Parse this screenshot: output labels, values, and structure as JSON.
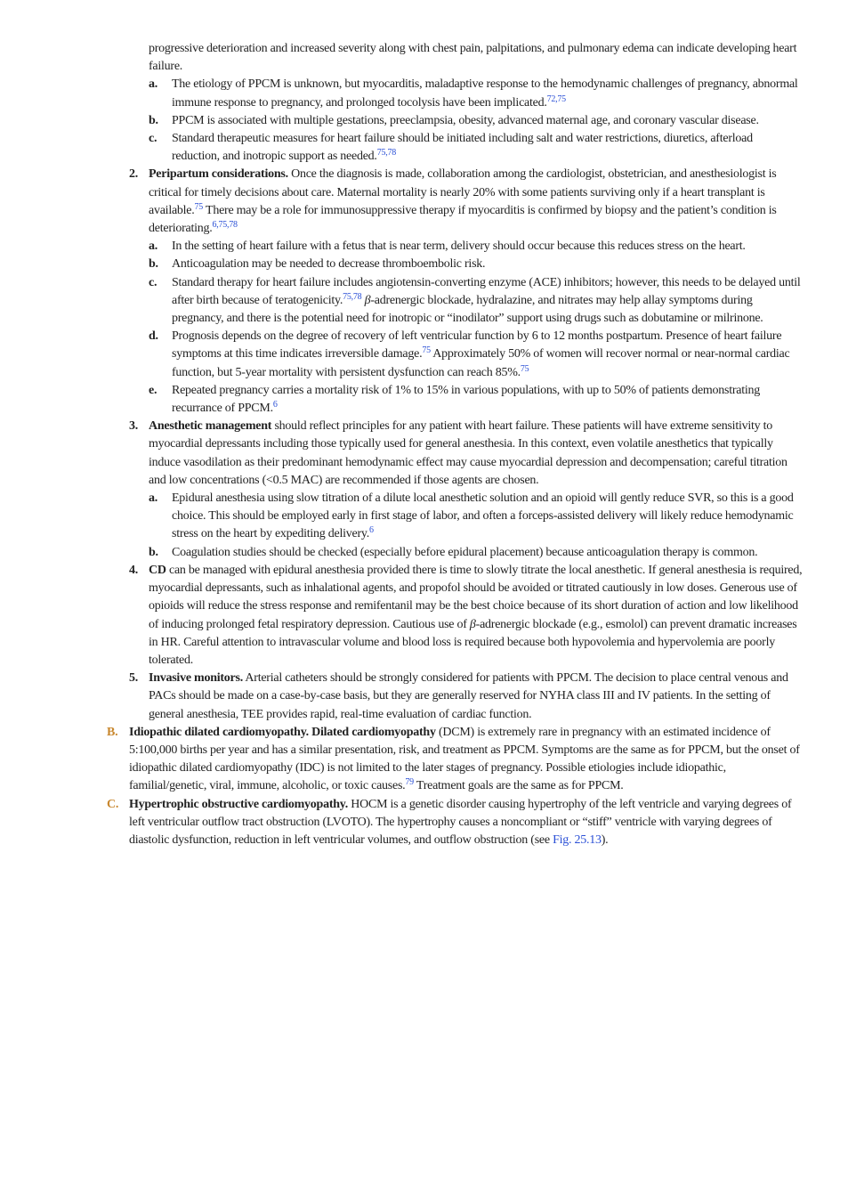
{
  "items": [
    {
      "level": 1,
      "runs": [
        {
          "t": "progressive deterioration and increased severity along with chest pain, palpitations, and pulmonary edema can indicate developing heart failure."
        }
      ]
    },
    {
      "level": 2,
      "marker": "a.",
      "runs": [
        {
          "t": "The etiology of PPCM is unknown, but myocarditis, maladaptive response to the hemodynamic challenges of pregnancy, abnormal immune response to pregnancy, and prolonged tocolysis have been implicated."
        },
        {
          "sup": "72,75"
        }
      ]
    },
    {
      "level": 2,
      "marker": "b.",
      "runs": [
        {
          "t": "PPCM is associated with multiple gestations, preeclampsia, obesity, advanced maternal age, and coronary vascular disease."
        }
      ]
    },
    {
      "level": 2,
      "marker": "c.",
      "runs": [
        {
          "t": "Standard therapeutic measures for heart failure should be initiated including salt and water restrictions, diuretics, afterload reduction, and inotropic support as needed."
        },
        {
          "sup": "75,78"
        }
      ]
    },
    {
      "level": 1,
      "marker": "2.",
      "runs": [
        {
          "b": "Peripartum considerations."
        },
        {
          "t": " Once the diagnosis is made, collaboration among the cardiologist, obstetrician, and anesthesiologist is critical for timely decisions about care. Maternal mortality is nearly 20% with some patients surviving only if a heart transplant is available."
        },
        {
          "sup": "75"
        },
        {
          "t": " There may be a role for immunosuppressive therapy if myocarditis is confirmed by biopsy and the patient’s condition is deteriorating."
        },
        {
          "sup": "6,75,78"
        }
      ]
    },
    {
      "level": 2,
      "marker": "a.",
      "runs": [
        {
          "t": "In the setting of heart failure with a fetus that is near term, delivery should occur because this reduces stress on the heart."
        }
      ]
    },
    {
      "level": 2,
      "marker": "b.",
      "runs": [
        {
          "t": "Anticoagulation may be needed to decrease thromboembolic risk."
        }
      ]
    },
    {
      "level": 2,
      "marker": "c.",
      "runs": [
        {
          "t": "Standard therapy for heart failure includes angiotensin-converting enzyme (ACE) inhibitors; however, this needs to be delayed until after birth because of teratogenicity."
        },
        {
          "sup": "75,78"
        },
        {
          "i": " β"
        },
        {
          "t": "-adrenergic blockade, hydralazine, and nitrates may help allay symptoms during pregnancy, and there is the potential need for inotropic or “inodilator” support using drugs such as dobutamine or milrinone."
        }
      ]
    },
    {
      "level": 2,
      "marker": "d.",
      "runs": [
        {
          "t": "Prognosis depends on the degree of recovery of left ventricular function by 6 to 12 months postpartum. Presence of heart failure symptoms at this time indicates irreversible damage."
        },
        {
          "sup": "75"
        },
        {
          "t": " Approximately 50% of women will recover normal or near-normal cardiac function, but 5-year mortality with persistent dysfunction can reach 85%."
        },
        {
          "sup": "75"
        }
      ]
    },
    {
      "level": 2,
      "marker": "e.",
      "runs": [
        {
          "t": "Repeated pregnancy carries a mortality risk of 1% to 15% in various populations, with up to 50% of patients demonstrating recurrance of PPCM."
        },
        {
          "sup": "6"
        }
      ]
    },
    {
      "level": 1,
      "marker": "3.",
      "runs": [
        {
          "b": "Anesthetic management"
        },
        {
          "t": " should reflect principles for any patient with heart failure. These patients will have extreme sensitivity to myocardial depressants including those typically used for general anesthesia. In this context, even volatile anesthetics that typically induce vasodilation as their predominant hemodynamic effect may cause myocardial depression and decompensation; careful titration and low concentrations (<0.5 MAC) are recommended if those agents are chosen."
        }
      ]
    },
    {
      "level": 2,
      "marker": "a.",
      "runs": [
        {
          "t": "Epidural anesthesia using slow titration of a dilute local anesthetic solution and an opioid will gently reduce SVR, so this is a good choice. This should be employed early in first stage of labor, and often a forceps-assisted delivery will likely reduce hemodynamic stress on the heart by expediting delivery."
        },
        {
          "sup": "6"
        }
      ]
    },
    {
      "level": 2,
      "marker": "b.",
      "runs": [
        {
          "t": "Coagulation studies should be checked (especially before epidural placement) because anticoagulation therapy is common."
        }
      ]
    },
    {
      "level": 1,
      "marker": "4.",
      "runs": [
        {
          "b": "CD"
        },
        {
          "t": " can be managed with epidural anesthesia provided there is time to slowly titrate the local anesthetic. If general anesthesia is required, myocardial depressants, such as inhalational agents, and propofol should be avoided or titrated cautiously in low doses. Generous use of opioids will reduce the stress response and remifentanil may be the best choice because of its short duration of action and low likelihood of inducing prolonged fetal respiratory depression. Cautious use of "
        },
        {
          "i": "β"
        },
        {
          "t": "-adrenergic blockade (e.g., esmolol) can prevent dramatic increases in HR. Careful attention to intravascular volume and blood loss is required because both hypovolemia and hypervolemia are poorly tolerated."
        }
      ]
    },
    {
      "level": 1,
      "marker": "5.",
      "runs": [
        {
          "b": "Invasive monitors."
        },
        {
          "t": " Arterial catheters should be strongly considered for patients with PPCM. The decision to place central venous and PACs should be made on a case-by-case basis, but they are generally reserved for NYHA class III and IV patients. In the setting of general anesthesia, TEE provides rapid, real-time evaluation of cardiac function."
        }
      ]
    },
    {
      "level": 0,
      "marker": "B.",
      "runs": [
        {
          "b": "Idiopathic dilated cardiomyopathy. Dilated cardiomyopathy"
        },
        {
          "t": " (DCM) is extremely rare in pregnancy with an estimated incidence of 5:100,000 births per year and has a similar presentation, risk, and treatment as PPCM. Symptoms are the same as for PPCM, but the onset of idiopathic dilated cardiomyopathy (IDC) is not limited to the later stages of pregnancy. Possible etiologies include idiopathic, familial/genetic, viral, immune, alcoholic, or toxic causes."
        },
        {
          "sup": "79"
        },
        {
          "t": " Treatment goals are the same as for PPCM."
        }
      ]
    },
    {
      "level": 0,
      "marker": "C.",
      "runs": [
        {
          "b": "Hypertrophic obstructive cardiomyopathy."
        },
        {
          "t": " HOCM is a genetic disorder causing hypertrophy of the left ventricle and varying degrees of left ventricular outflow tract obstruction (LVOTO). The hypertrophy causes a noncompliant or “stiff” ventricle with varying degrees of diastolic dysfunction, reduction in left ventricular volumes, and outflow obstruction (see "
        },
        {
          "link": "Fig. 25.13"
        },
        {
          "t": ")."
        }
      ]
    }
  ]
}
